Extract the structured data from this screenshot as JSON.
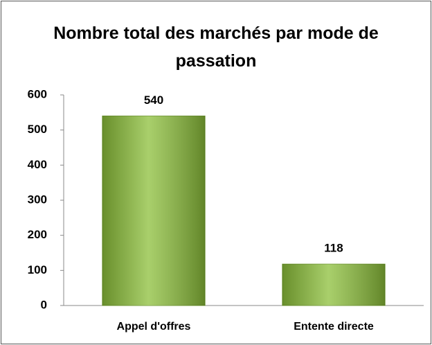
{
  "chart_data": {
    "type": "bar",
    "title": "Nombre total des marchés par mode de passation",
    "categories": [
      "Appel d'offres",
      "Entente directe"
    ],
    "values": [
      540,
      118
    ],
    "color": "#8cbf3a",
    "ylim": [
      0,
      600
    ],
    "yticks": [
      0,
      100,
      200,
      300,
      400,
      500,
      600
    ],
    "grid": false
  }
}
